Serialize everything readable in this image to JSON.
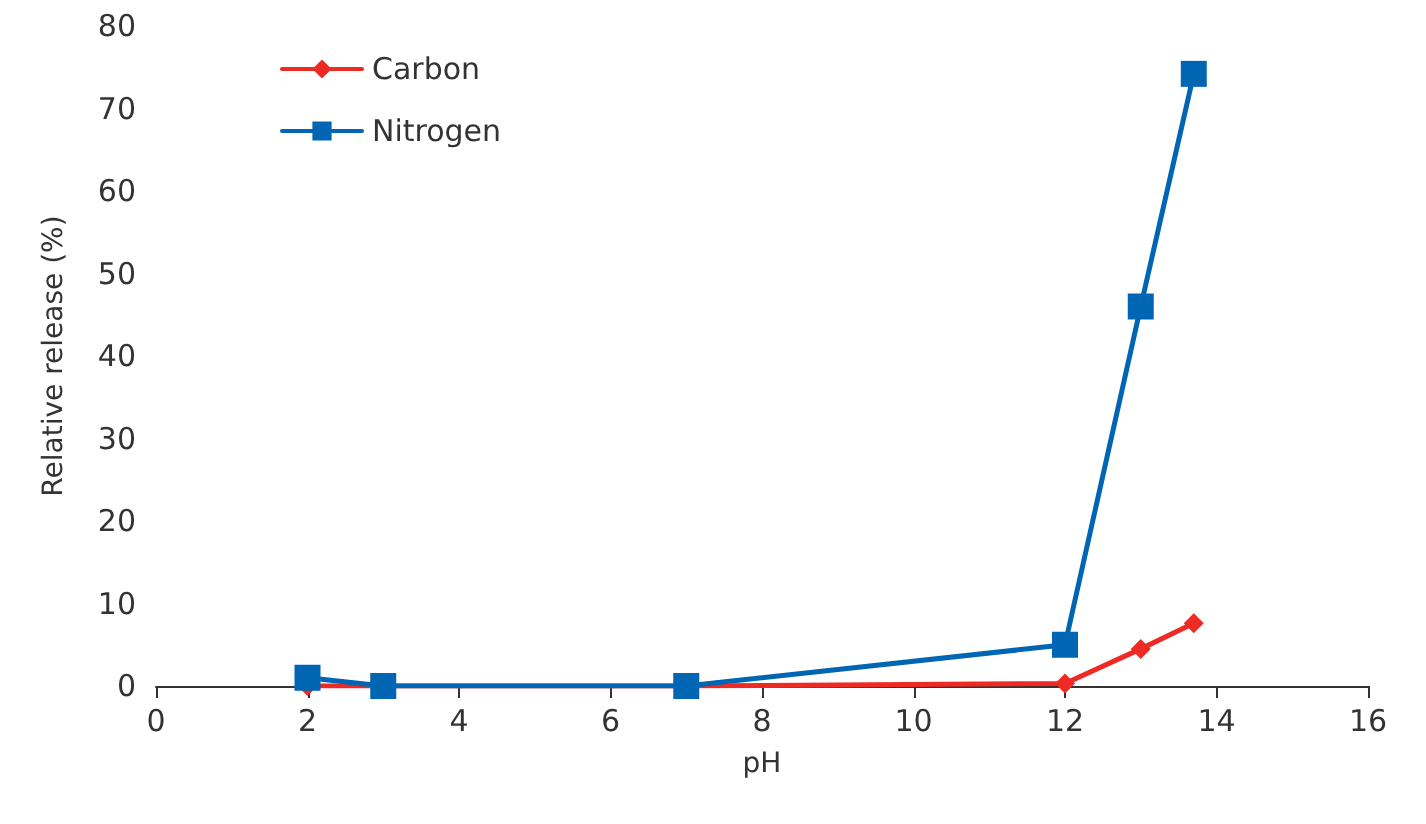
{
  "chart_data": {
    "type": "line",
    "xlabel": "pH",
    "ylabel": "Relative release (%)",
    "xlim": [
      0,
      16
    ],
    "xticks": [
      0,
      2,
      4,
      6,
      8,
      10,
      12,
      14,
      16
    ],
    "ylim": [
      0,
      80
    ],
    "yticks": [
      0,
      10,
      20,
      30,
      40,
      50,
      60,
      70,
      80
    ],
    "x": [
      2,
      3,
      7,
      12,
      13,
      13.7
    ],
    "series": [
      {
        "name": "Carbon",
        "color": "#ee2a24",
        "marker": "diamond",
        "values": [
          0,
          0,
          0,
          0.3,
          4.5,
          7.6
        ]
      },
      {
        "name": "Nitrogen",
        "color": "#0066b3",
        "marker": "square",
        "values": [
          1,
          0,
          0,
          5,
          46,
          74.2
        ]
      }
    ],
    "grid": false,
    "legend": "top left",
    "line_style": "solid"
  }
}
